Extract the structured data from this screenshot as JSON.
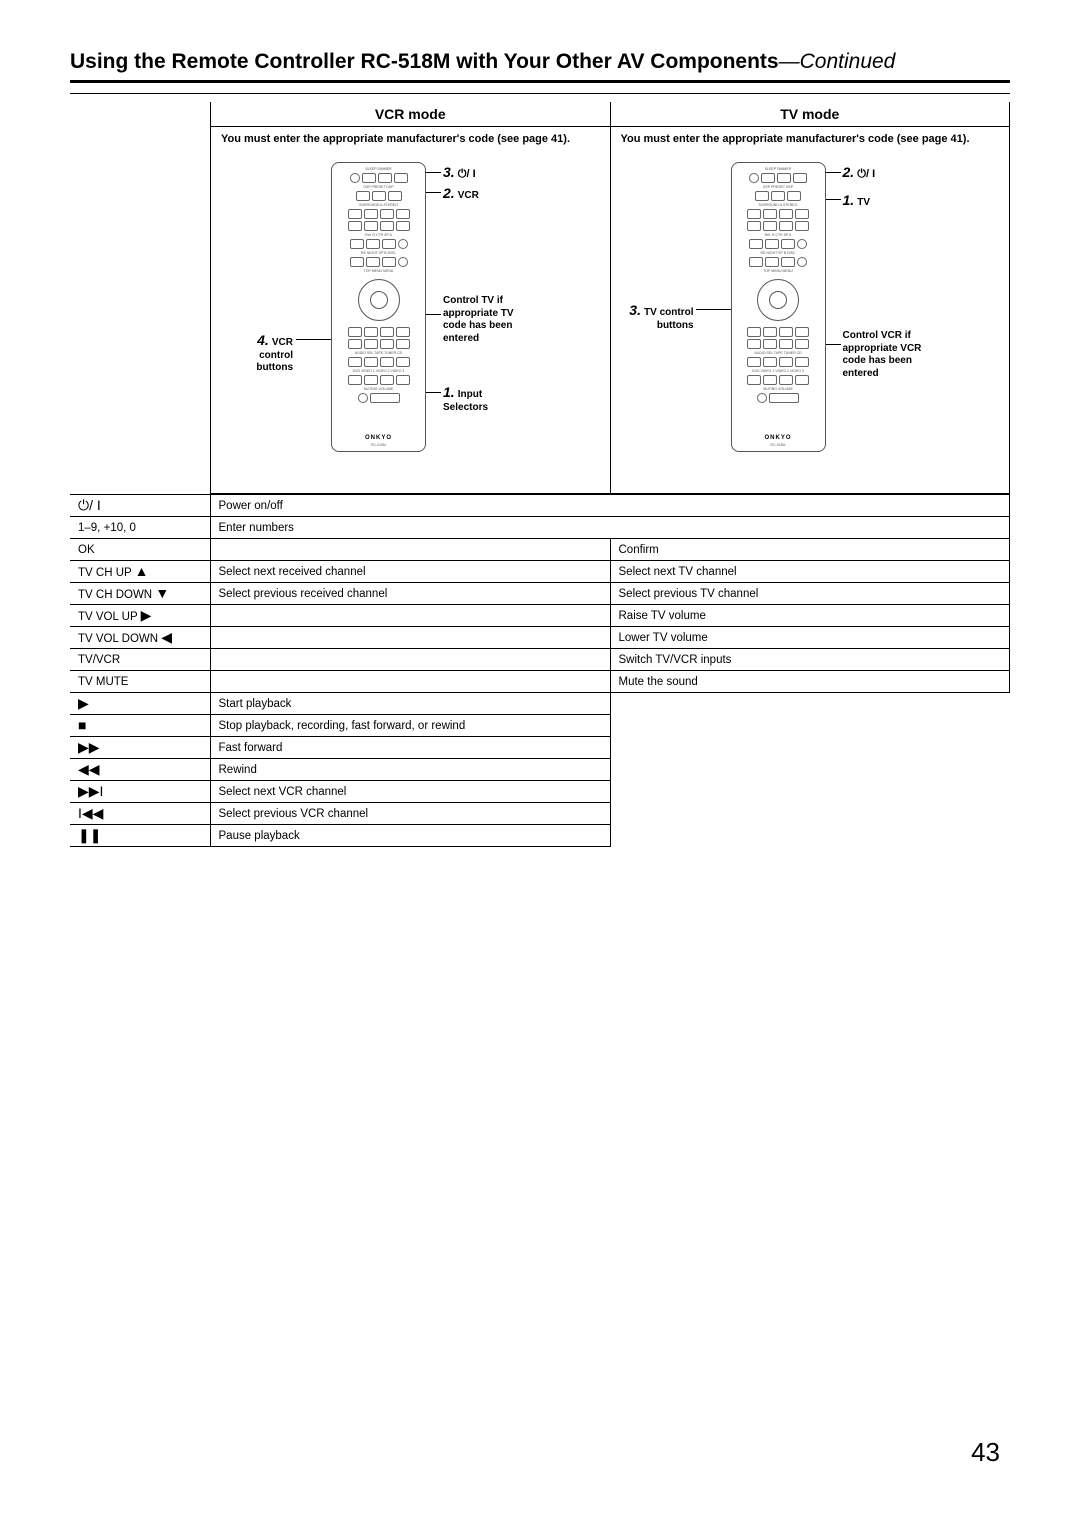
{
  "title_main": "Using the Remote Controller RC-518M with Your Other AV Components",
  "title_suffix": "—Continued",
  "modes": {
    "vcr": {
      "header": "VCR mode",
      "note": "You must enter the appropriate manufacturer's code (see page 41).",
      "callouts": {
        "c3": {
          "num": "3.",
          "sym": "⏻/ I"
        },
        "c2": {
          "num": "2.",
          "label": "VCR"
        },
        "c_tv": "Control TV if appropriate TV code has been entered",
        "c4": {
          "num": "4.",
          "label": "VCR control buttons"
        },
        "c1": {
          "num": "1.",
          "label": "Input Selectors"
        }
      }
    },
    "tv": {
      "header": "TV mode",
      "note": "You must enter the appropriate manufacturer's code (see page 41).",
      "callouts": {
        "c2": {
          "num": "2.",
          "sym": "⏻/ I"
        },
        "c1": {
          "num": "1.",
          "label": "TV"
        },
        "c3": {
          "num": "3.",
          "label": "TV control buttons"
        },
        "c_vcr": "Control VCR if appropriate VCR code has been entered"
      }
    }
  },
  "remote": {
    "brand": "ONKYO",
    "model": "RC-518M",
    "top_labels": "SLEEP  DIMMER",
    "row_labels1": "DSP   PRESET   DSP",
    "row_labels2": "SURROUND  A.STEREO",
    "row_labels3": "Ref. R.CTR  SP A",
    "row_labels4": "RE NIGHT  SP B  DISC",
    "row_labels5": "TOP MENU   MENU",
    "row_labels6": "AUDIO SEL  TAPE  TUNER  CD",
    "row_labels7": "DVD  VIDEO 1  VIDEO 2  VIDEO 3",
    "row_labels8": "MUTING    VOLUME"
  },
  "table": {
    "rows": [
      {
        "btn_sym": "⏻/ I",
        "btn": "",
        "vcr": "Power on/off",
        "tv": "",
        "span": true
      },
      {
        "btn": "1–9, +10, 0",
        "vcr": "Enter numbers",
        "tv": "",
        "span": true
      },
      {
        "btn": "OK",
        "vcr": "",
        "tv": "Confirm"
      },
      {
        "btn": "TV CH UP ",
        "btn_sym2": "▲",
        "vcr": "Select next received channel",
        "tv": "Select next TV channel"
      },
      {
        "btn": "TV CH DOWN ",
        "btn_sym2": "▼",
        "vcr": "Select previous received channel",
        "tv": "Select previous TV channel"
      },
      {
        "btn": "TV VOL UP ",
        "btn_sym2": "▶",
        "vcr": "",
        "tv": "Raise TV volume"
      },
      {
        "btn": "TV VOL DOWN ",
        "btn_sym2": "◀",
        "vcr": "",
        "tv": "Lower TV volume"
      },
      {
        "btn": "TV/VCR",
        "vcr": "",
        "tv": "Switch TV/VCR inputs"
      },
      {
        "btn": "TV MUTE",
        "vcr": "",
        "tv": "Mute the sound"
      },
      {
        "btn_sym": "▶",
        "vcr": "Start playback",
        "tv": null
      },
      {
        "btn_sym": "■",
        "vcr": "Stop playback, recording, fast forward, or rewind",
        "tv": null
      },
      {
        "btn_sym": "▶▶",
        "vcr": "Fast forward",
        "tv": null
      },
      {
        "btn_sym": "◀◀",
        "vcr": "Rewind",
        "tv": null
      },
      {
        "btn_sym": "▶▶I",
        "vcr": "Select next VCR channel",
        "tv": null
      },
      {
        "btn_sym": "I◀◀",
        "vcr": "Select previous VCR channel",
        "tv": null
      },
      {
        "btn_sym": "❚❚",
        "vcr": "Pause playback",
        "tv": null
      }
    ]
  },
  "page_number": "43"
}
